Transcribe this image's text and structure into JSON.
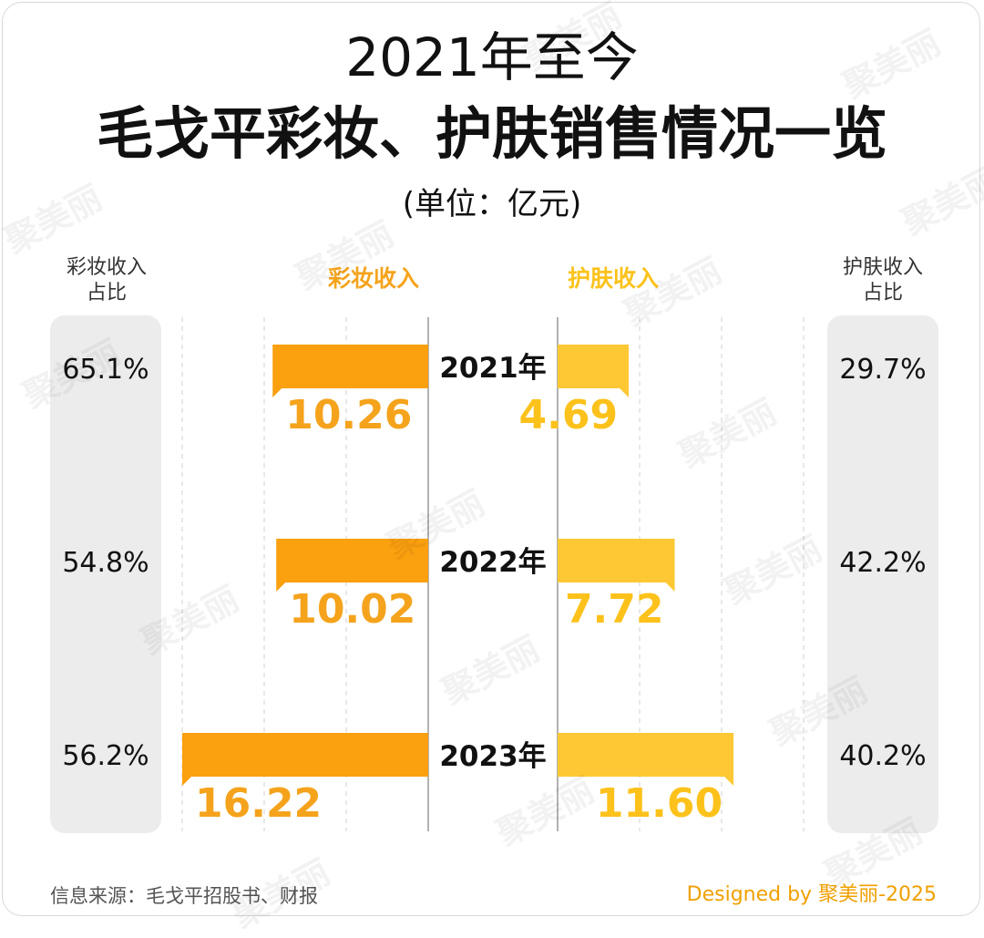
{
  "title_line1": "2021年至今",
  "title_line2": "毛戈平彩妆、护肤销售情况一览",
  "subtitle": "(单位：亿元)",
  "left_side_label": "彩妆收入\n占比",
  "right_side_label": "护肤收入\n占比",
  "watermark": "聚美丽",
  "colors": {
    "cosmetics": "#fba00f",
    "cosmetics_text": "#f5a31c",
    "skincare": "#fdc833",
    "skincare_text": "#fcc21b",
    "panel": "#ececec",
    "grid": "#d9d9d9"
  },
  "footer": {
    "source": "信息来源：毛戈平招股书、财报",
    "credit": "Designed by 聚美丽-2025"
  },
  "chart_data": {
    "type": "bar",
    "categories": [
      "2021年",
      "2022年",
      "2023年"
    ],
    "series": [
      {
        "name": "彩妆收入",
        "values": [
          10.26,
          10.02,
          16.22
        ],
        "labels": [
          "10.26",
          "10.02",
          "16.22"
        ]
      },
      {
        "name": "护肤收入",
        "values": [
          4.69,
          7.72,
          11.6
        ],
        "labels": [
          "4.69",
          "7.72",
          "11.60"
        ]
      }
    ],
    "cosmetics_share": [
      "65.1%",
      "54.8%",
      "56.2%"
    ],
    "skincare_share": [
      "29.7%",
      "42.2%",
      "40.2%"
    ],
    "xlim": [
      0,
      16.22
    ],
    "grid": true,
    "orientation": "horizontal-butterfly"
  }
}
